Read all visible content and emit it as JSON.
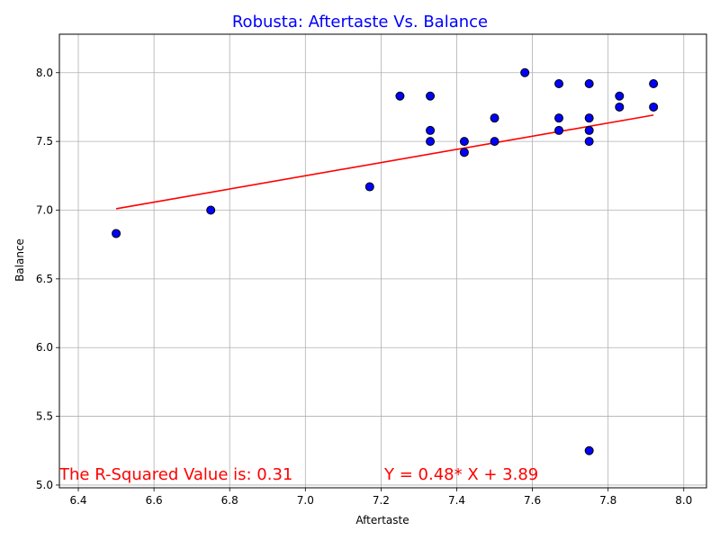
{
  "chart_data": {
    "type": "scatter",
    "title": "Robusta: Aftertaste Vs. Balance",
    "xlabel": "Aftertaste",
    "ylabel": "Balance",
    "xlim": [
      6.35,
      8.06
    ],
    "ylim": [
      4.98,
      8.28
    ],
    "xticks": [
      "6.4",
      "6.6",
      "6.8",
      "7.0",
      "7.2",
      "7.4",
      "7.6",
      "7.8",
      "8.0"
    ],
    "yticks": [
      "5.0",
      "5.5",
      "6.0",
      "6.5",
      "7.0",
      "7.5",
      "8.0"
    ],
    "grid": true,
    "points": [
      {
        "x": 6.5,
        "y": 6.83
      },
      {
        "x": 6.75,
        "y": 7.0
      },
      {
        "x": 7.17,
        "y": 7.17
      },
      {
        "x": 7.25,
        "y": 7.83
      },
      {
        "x": 7.33,
        "y": 7.83
      },
      {
        "x": 7.33,
        "y": 7.58
      },
      {
        "x": 7.33,
        "y": 7.5
      },
      {
        "x": 7.42,
        "y": 7.5
      },
      {
        "x": 7.42,
        "y": 7.42
      },
      {
        "x": 7.5,
        "y": 7.67
      },
      {
        "x": 7.5,
        "y": 7.5
      },
      {
        "x": 7.58,
        "y": 8.0
      },
      {
        "x": 7.67,
        "y": 7.92
      },
      {
        "x": 7.67,
        "y": 7.67
      },
      {
        "x": 7.67,
        "y": 7.58
      },
      {
        "x": 7.75,
        "y": 7.92
      },
      {
        "x": 7.75,
        "y": 7.67
      },
      {
        "x": 7.75,
        "y": 7.58
      },
      {
        "x": 7.75,
        "y": 7.5
      },
      {
        "x": 7.75,
        "y": 5.25
      },
      {
        "x": 7.83,
        "y": 7.83
      },
      {
        "x": 7.83,
        "y": 7.75
      },
      {
        "x": 7.92,
        "y": 7.92
      },
      {
        "x": 7.92,
        "y": 7.75
      }
    ],
    "regression": {
      "slope": 0.48,
      "intercept": 3.89,
      "x_range": [
        6.5,
        7.92
      ]
    },
    "annotations": {
      "r_squared": "The R-Squared Value is: 0.31",
      "equation": "Y = 0.48* X + 3.89"
    },
    "colors": {
      "title": "#0000ff",
      "point_fill": "#0000ff",
      "point_edge": "#000000",
      "line": "#ff0000",
      "annotation": "#ff0000",
      "grid": "#b0b0b0"
    }
  }
}
